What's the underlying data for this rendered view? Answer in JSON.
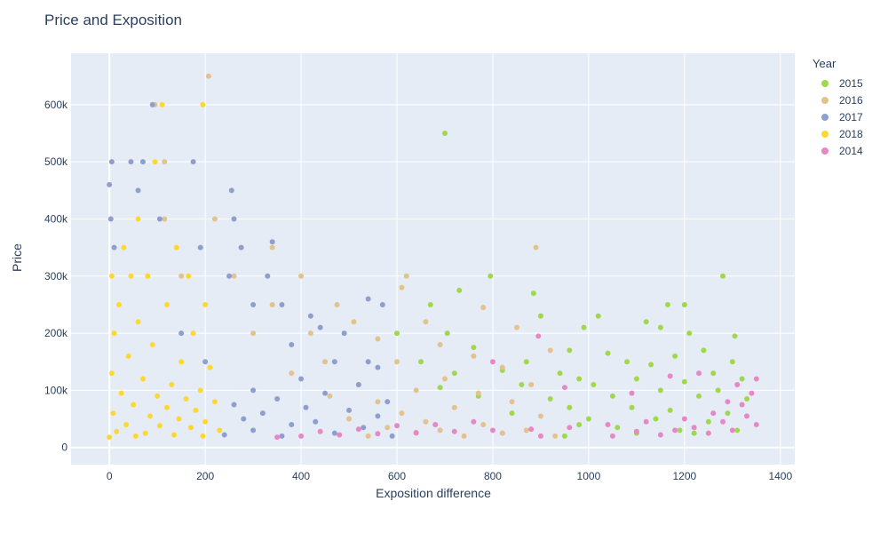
{
  "chart_data": {
    "type": "scatter",
    "title": "Price and Exposition",
    "xlabel": "Exposition difference",
    "ylabel": "Price",
    "xlim": [
      -80,
      1430
    ],
    "ylim": [
      -30000,
      690000
    ],
    "xticks": [
      {
        "value": 0,
        "label": "0"
      },
      {
        "value": 200,
        "label": "200"
      },
      {
        "value": 400,
        "label": "400"
      },
      {
        "value": 600,
        "label": "600"
      },
      {
        "value": 800,
        "label": "800"
      },
      {
        "value": 1000,
        "label": "1000"
      },
      {
        "value": 1200,
        "label": "1200"
      },
      {
        "value": 1400,
        "label": "1400"
      }
    ],
    "yticks": [
      {
        "value": 0,
        "label": "0"
      },
      {
        "value": 100000,
        "label": "100k"
      },
      {
        "value": 200000,
        "label": "200k"
      },
      {
        "value": 300000,
        "label": "300k"
      },
      {
        "value": 400000,
        "label": "400k"
      },
      {
        "value": 500000,
        "label": "500k"
      },
      {
        "value": 600000,
        "label": "600k"
      }
    ],
    "grid": true,
    "legend": {
      "title": "Year",
      "position": "right"
    },
    "series": [
      {
        "name": "2015",
        "color": "#a0d84b",
        "points": [
          [
            700,
            550000
          ],
          [
            795,
            300000
          ],
          [
            1280,
            300000
          ],
          [
            730,
            275000
          ],
          [
            885,
            270000
          ],
          [
            1165,
            250000
          ],
          [
            1200,
            250000
          ],
          [
            670,
            250000
          ],
          [
            900,
            230000
          ],
          [
            1020,
            230000
          ],
          [
            1120,
            220000
          ],
          [
            1150,
            210000
          ],
          [
            990,
            210000
          ],
          [
            1210,
            200000
          ],
          [
            1305,
            195000
          ],
          [
            600,
            200000
          ],
          [
            705,
            200000
          ],
          [
            760,
            175000
          ],
          [
            960,
            170000
          ],
          [
            1040,
            165000
          ],
          [
            1180,
            160000
          ],
          [
            1240,
            170000
          ],
          [
            1300,
            150000
          ],
          [
            1080,
            150000
          ],
          [
            870,
            150000
          ],
          [
            650,
            150000
          ],
          [
            820,
            135000
          ],
          [
            940,
            130000
          ],
          [
            1130,
            145000
          ],
          [
            1260,
            130000
          ],
          [
            720,
            130000
          ],
          [
            980,
            120000
          ],
          [
            1100,
            120000
          ],
          [
            1320,
            120000
          ],
          [
            1200,
            115000
          ],
          [
            1010,
            110000
          ],
          [
            860,
            110000
          ],
          [
            690,
            105000
          ],
          [
            1150,
            100000
          ],
          [
            1270,
            100000
          ],
          [
            770,
            90000
          ],
          [
            920,
            85000
          ],
          [
            1050,
            90000
          ],
          [
            1230,
            90000
          ],
          [
            1330,
            85000
          ],
          [
            1090,
            70000
          ],
          [
            960,
            70000
          ],
          [
            1170,
            65000
          ],
          [
            1290,
            60000
          ],
          [
            840,
            60000
          ],
          [
            1000,
            50000
          ],
          [
            1140,
            50000
          ],
          [
            1250,
            45000
          ],
          [
            980,
            40000
          ],
          [
            1060,
            35000
          ],
          [
            1190,
            30000
          ],
          [
            1310,
            30000
          ],
          [
            1100,
            25000
          ],
          [
            1220,
            25000
          ],
          [
            950,
            20000
          ]
        ]
      },
      {
        "name": "2016",
        "color": "#e3c28e",
        "points": [
          [
            207,
            650000
          ],
          [
            95,
            600000
          ],
          [
            115,
            500000
          ],
          [
            220,
            400000
          ],
          [
            115,
            400000
          ],
          [
            890,
            350000
          ],
          [
            260,
            300000
          ],
          [
            400,
            300000
          ],
          [
            620,
            300000
          ],
          [
            340,
            350000
          ],
          [
            150,
            300000
          ],
          [
            475,
            250000
          ],
          [
            340,
            250000
          ],
          [
            780,
            245000
          ],
          [
            610,
            280000
          ],
          [
            660,
            220000
          ],
          [
            510,
            220000
          ],
          [
            850,
            210000
          ],
          [
            420,
            200000
          ],
          [
            300,
            200000
          ],
          [
            560,
            190000
          ],
          [
            690,
            180000
          ],
          [
            920,
            170000
          ],
          [
            760,
            160000
          ],
          [
            450,
            150000
          ],
          [
            600,
            150000
          ],
          [
            820,
            140000
          ],
          [
            380,
            130000
          ],
          [
            700,
            120000
          ],
          [
            520,
            110000
          ],
          [
            880,
            110000
          ],
          [
            640,
            100000
          ],
          [
            770,
            95000
          ],
          [
            460,
            90000
          ],
          [
            560,
            80000
          ],
          [
            840,
            80000
          ],
          [
            720,
            70000
          ],
          [
            610,
            60000
          ],
          [
            900,
            55000
          ],
          [
            500,
            50000
          ],
          [
            660,
            45000
          ],
          [
            780,
            40000
          ],
          [
            580,
            35000
          ],
          [
            870,
            30000
          ],
          [
            640,
            25000
          ],
          [
            740,
            20000
          ],
          [
            820,
            25000
          ],
          [
            540,
            20000
          ],
          [
            930,
            20000
          ],
          [
            690,
            30000
          ]
        ]
      },
      {
        "name": "2017",
        "color": "#8f9fcd",
        "points": [
          [
            5,
            500000
          ],
          [
            90,
            600000
          ],
          [
            70,
            500000
          ],
          [
            175,
            500000
          ],
          [
            45,
            500000
          ],
          [
            0,
            460000
          ],
          [
            60,
            450000
          ],
          [
            255,
            450000
          ],
          [
            3,
            400000
          ],
          [
            105,
            400000
          ],
          [
            260,
            400000
          ],
          [
            190,
            350000
          ],
          [
            275,
            350000
          ],
          [
            340,
            360000
          ],
          [
            10,
            350000
          ],
          [
            250,
            300000
          ],
          [
            330,
            300000
          ],
          [
            300,
            250000
          ],
          [
            420,
            230000
          ],
          [
            360,
            250000
          ],
          [
            540,
            260000
          ],
          [
            570,
            250000
          ],
          [
            440,
            210000
          ],
          [
            490,
            200000
          ],
          [
            380,
            180000
          ],
          [
            470,
            150000
          ],
          [
            540,
            150000
          ],
          [
            560,
            140000
          ],
          [
            400,
            120000
          ],
          [
            520,
            110000
          ],
          [
            300,
            100000
          ],
          [
            450,
            95000
          ],
          [
            350,
            85000
          ],
          [
            580,
            80000
          ],
          [
            260,
            75000
          ],
          [
            410,
            70000
          ],
          [
            500,
            65000
          ],
          [
            320,
            60000
          ],
          [
            560,
            55000
          ],
          [
            280,
            50000
          ],
          [
            430,
            45000
          ],
          [
            380,
            40000
          ],
          [
            530,
            35000
          ],
          [
            300,
            30000
          ],
          [
            470,
            25000
          ],
          [
            240,
            22000
          ],
          [
            360,
            20000
          ],
          [
            590,
            20000
          ],
          [
            200,
            150000
          ],
          [
            150,
            200000
          ]
        ]
      },
      {
        "name": "2018",
        "color": "#fed82f",
        "points": [
          [
            195,
            600000
          ],
          [
            110,
            600000
          ],
          [
            95,
            500000
          ],
          [
            60,
            400000
          ],
          [
            140,
            350000
          ],
          [
            30,
            350000
          ],
          [
            200,
            250000
          ],
          [
            5,
            300000
          ],
          [
            45,
            300000
          ],
          [
            80,
            300000
          ],
          [
            165,
            300000
          ],
          [
            20,
            250000
          ],
          [
            120,
            250000
          ],
          [
            60,
            220000
          ],
          [
            175,
            200000
          ],
          [
            10,
            200000
          ],
          [
            90,
            180000
          ],
          [
            40,
            160000
          ],
          [
            150,
            150000
          ],
          [
            210,
            140000
          ],
          [
            5,
            130000
          ],
          [
            70,
            120000
          ],
          [
            130,
            110000
          ],
          [
            190,
            100000
          ],
          [
            25,
            95000
          ],
          [
            100,
            90000
          ],
          [
            160,
            85000
          ],
          [
            220,
            80000
          ],
          [
            50,
            75000
          ],
          [
            120,
            70000
          ],
          [
            180,
            65000
          ],
          [
            8,
            60000
          ],
          [
            85,
            55000
          ],
          [
            145,
            50000
          ],
          [
            200,
            45000
          ],
          [
            35,
            40000
          ],
          [
            105,
            38000
          ],
          [
            170,
            35000
          ],
          [
            230,
            30000
          ],
          [
            15,
            28000
          ],
          [
            75,
            25000
          ],
          [
            135,
            22000
          ],
          [
            195,
            20000
          ],
          [
            55,
            20000
          ],
          [
            0,
            18000
          ]
        ]
      },
      {
        "name": "2014",
        "color": "#e787c5",
        "points": [
          [
            1350,
            120000
          ],
          [
            1310,
            110000
          ],
          [
            1340,
            95000
          ],
          [
            1290,
            80000
          ],
          [
            1230,
            130000
          ],
          [
            1170,
            125000
          ],
          [
            895,
            195000
          ],
          [
            800,
            150000
          ],
          [
            950,
            105000
          ],
          [
            1090,
            95000
          ],
          [
            1260,
            60000
          ],
          [
            1330,
            55000
          ],
          [
            1200,
            50000
          ],
          [
            1120,
            45000
          ],
          [
            1040,
            40000
          ],
          [
            960,
            35000
          ],
          [
            880,
            32000
          ],
          [
            800,
            30000
          ],
          [
            720,
            28000
          ],
          [
            640,
            26000
          ],
          [
            560,
            24000
          ],
          [
            480,
            22000
          ],
          [
            400,
            20000
          ],
          [
            350,
            18000
          ],
          [
            1350,
            40000
          ],
          [
            1300,
            30000
          ],
          [
            1250,
            25000
          ],
          [
            1150,
            22000
          ],
          [
            1050,
            20000
          ],
          [
            900,
            20000
          ],
          [
            760,
            45000
          ],
          [
            680,
            40000
          ],
          [
            600,
            38000
          ],
          [
            520,
            32000
          ],
          [
            440,
            28000
          ],
          [
            1320,
            75000
          ],
          [
            1280,
            45000
          ],
          [
            1220,
            35000
          ],
          [
            1180,
            30000
          ],
          [
            1100,
            28000
          ]
        ]
      }
    ]
  }
}
